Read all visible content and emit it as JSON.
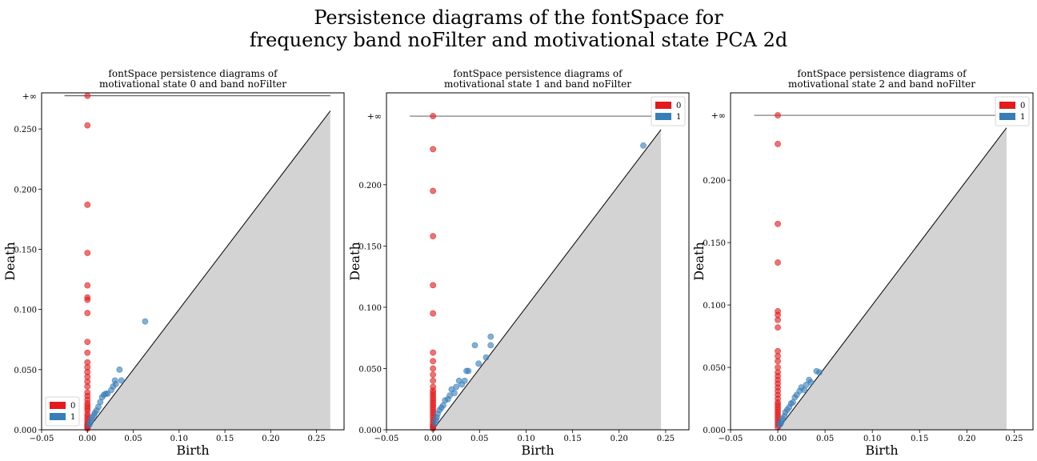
{
  "figure": {
    "title_line1": "Persistence diagrams of the fontSpace for",
    "title_line2": "frequency band noFilter and motivational state PCA 2d"
  },
  "colors": {
    "dim0": "#e41a1c",
    "dim1": "#377eb8",
    "shade": "#d3d3d3"
  },
  "chart_data": [
    {
      "type": "scatter",
      "title_line1": "fontSpace persistence diagrams of",
      "title_line2": "motivational state 0 and band noFilter",
      "xlabel": "Birth",
      "ylabel": "Death",
      "xlim": [
        -0.05,
        0.28
      ],
      "ylim": [
        0,
        0.28
      ],
      "diag_max": 0.265,
      "inf_value": 0.2775,
      "inf_label": "+∞",
      "xticks": [
        -0.05,
        0,
        0.05,
        0.1,
        0.15,
        0.2,
        0.25
      ],
      "xtick_labels": [
        "−0.05",
        "0.00",
        "0.05",
        "0.10",
        "0.15",
        "0.20",
        "0.25"
      ],
      "yticks": [
        0,
        0.05,
        0.1,
        0.15,
        0.2,
        0.25
      ],
      "ytick_labels": [
        "0.000",
        "0.050",
        "0.100",
        "0.150",
        "0.200",
        "0.250"
      ],
      "legend": {
        "placement": "lower-left",
        "entries": [
          "0",
          "1"
        ]
      },
      "series": [
        {
          "name": "0",
          "x": [
            0,
            0,
            0,
            0,
            0,
            0,
            0,
            0,
            0,
            0,
            0,
            0,
            0,
            0,
            0,
            0,
            0,
            0,
            0,
            0,
            0,
            0,
            0,
            0,
            0,
            0,
            0,
            0,
            0,
            0,
            0,
            0
          ],
          "y": [
            0.2775,
            0.253,
            0.187,
            0.147,
            0.12,
            0.11,
            0.108,
            0.097,
            0.073,
            0.064,
            0.056,
            0.052,
            0.048,
            0.044,
            0.04,
            0.036,
            0.031,
            0.028,
            0.025,
            0.022,
            0.02,
            0.018,
            0.016,
            0.013,
            0.011,
            0.009,
            0.007,
            0.005,
            0.004,
            0.003,
            0.002,
            0.001
          ]
        },
        {
          "name": "1",
          "x": [
            0.063,
            0.035,
            0.037,
            0.03,
            0.028,
            0.022,
            0.02,
            0.018,
            0.016,
            0.014,
            0.012,
            0.01,
            0.008,
            0.007,
            0.005,
            0.004,
            0.003,
            0.002,
            0.026,
            0.031
          ],
          "y": [
            0.09,
            0.05,
            0.041,
            0.041,
            0.036,
            0.03,
            0.03,
            0.029,
            0.027,
            0.023,
            0.019,
            0.016,
            0.014,
            0.012,
            0.01,
            0.008,
            0.006,
            0.004,
            0.033,
            0.038
          ]
        }
      ]
    },
    {
      "type": "scatter",
      "title_line1": "fontSpace persistence diagrams of",
      "title_line2": "motivational state 1 and band noFilter",
      "xlabel": "Birth",
      "ylabel": "Death",
      "xlim": [
        -0.05,
        0.275
      ],
      "ylim": [
        0,
        0.275
      ],
      "diag_max": 0.245,
      "inf_value": 0.256,
      "inf_label": "+∞",
      "xticks": [
        -0.05,
        0,
        0.05,
        0.1,
        0.15,
        0.2,
        0.25
      ],
      "xtick_labels": [
        "−0.05",
        "0.00",
        "0.05",
        "0.10",
        "0.15",
        "0.20",
        "0.25"
      ],
      "yticks": [
        0,
        0.05,
        0.1,
        0.15,
        0.2
      ],
      "ytick_labels": [
        "0.000",
        "0.050",
        "0.100",
        "0.150",
        "0.200"
      ],
      "legend": {
        "placement": "top-right",
        "entries": [
          "0",
          "1"
        ]
      },
      "series": [
        {
          "name": "0",
          "x": [
            0,
            0,
            0,
            0,
            0,
            0,
            0,
            0,
            0,
            0,
            0,
            0,
            0,
            0,
            0,
            0,
            0,
            0,
            0,
            0,
            0,
            0,
            0,
            0,
            0,
            0,
            0,
            0,
            0,
            0
          ],
          "y": [
            0.256,
            0.229,
            0.195,
            0.158,
            0.118,
            0.095,
            0.063,
            0.056,
            0.05,
            0.045,
            0.04,
            0.035,
            0.032,
            0.03,
            0.028,
            0.026,
            0.024,
            0.022,
            0.02,
            0.018,
            0.016,
            0.014,
            0.012,
            0.01,
            0.008,
            0.006,
            0.004,
            0.003,
            0.002,
            0.001
          ]
        },
        {
          "name": "1",
          "x": [
            0.226,
            0.062,
            0.062,
            0.057,
            0.045,
            0.049,
            0.038,
            0.036,
            0.034,
            0.031,
            0.028,
            0.025,
            0.023,
            0.02,
            0.018,
            0.016,
            0.013,
            0.011,
            0.009,
            0.007,
            0.005,
            0.004,
            0.003,
            0.002
          ],
          "y": [
            0.232,
            0.076,
            0.069,
            0.059,
            0.069,
            0.054,
            0.048,
            0.048,
            0.04,
            0.037,
            0.04,
            0.035,
            0.03,
            0.033,
            0.028,
            0.025,
            0.024,
            0.02,
            0.018,
            0.016,
            0.013,
            0.01,
            0.008,
            0.005
          ]
        }
      ]
    },
    {
      "type": "scatter",
      "title_line1": "fontSpace persistence diagrams of",
      "title_line2": "motivational state 2 and band noFilter",
      "xlabel": "Birth",
      "ylabel": "Death",
      "xlim": [
        -0.05,
        0.27
      ],
      "ylim": [
        0,
        0.27
      ],
      "diag_max": 0.242,
      "inf_value": 0.252,
      "inf_label": "+∞",
      "xticks": [
        -0.05,
        0,
        0.05,
        0.1,
        0.15,
        0.2,
        0.25
      ],
      "xtick_labels": [
        "−0.05",
        "0.00",
        "0.05",
        "0.10",
        "0.15",
        "0.20",
        "0.25"
      ],
      "yticks": [
        0,
        0.05,
        0.1,
        0.15,
        0.2
      ],
      "ytick_labels": [
        "0.000",
        "0.050",
        "0.100",
        "0.150",
        "0.200"
      ],
      "legend": {
        "placement": "top-right",
        "entries": [
          "0",
          "1"
        ]
      },
      "series": [
        {
          "name": "0",
          "x": [
            0,
            0,
            0,
            0,
            0,
            0,
            0,
            0,
            0,
            0,
            0,
            0,
            0,
            0,
            0,
            0,
            0,
            0,
            0,
            0,
            0,
            0,
            0,
            0,
            0,
            0,
            0,
            0,
            0,
            0,
            0
          ],
          "y": [
            0.252,
            0.229,
            0.165,
            0.134,
            0.095,
            0.092,
            0.088,
            0.082,
            0.063,
            0.059,
            0.055,
            0.05,
            0.046,
            0.043,
            0.04,
            0.037,
            0.034,
            0.031,
            0.028,
            0.025,
            0.022,
            0.02,
            0.018,
            0.016,
            0.014,
            0.012,
            0.01,
            0.008,
            0.006,
            0.004,
            0.002
          ]
        },
        {
          "name": "1",
          "x": [
            0.041,
            0.044,
            0.033,
            0.035,
            0.025,
            0.023,
            0.02,
            0.018,
            0.016,
            0.014,
            0.012,
            0.01,
            0.008,
            0.007,
            0.005,
            0.004,
            0.003,
            0.002,
            0.028,
            0.03
          ],
          "y": [
            0.047,
            0.046,
            0.04,
            0.038,
            0.034,
            0.031,
            0.028,
            0.026,
            0.022,
            0.021,
            0.018,
            0.016,
            0.014,
            0.011,
            0.009,
            0.007,
            0.005,
            0.004,
            0.032,
            0.036
          ]
        }
      ]
    }
  ]
}
